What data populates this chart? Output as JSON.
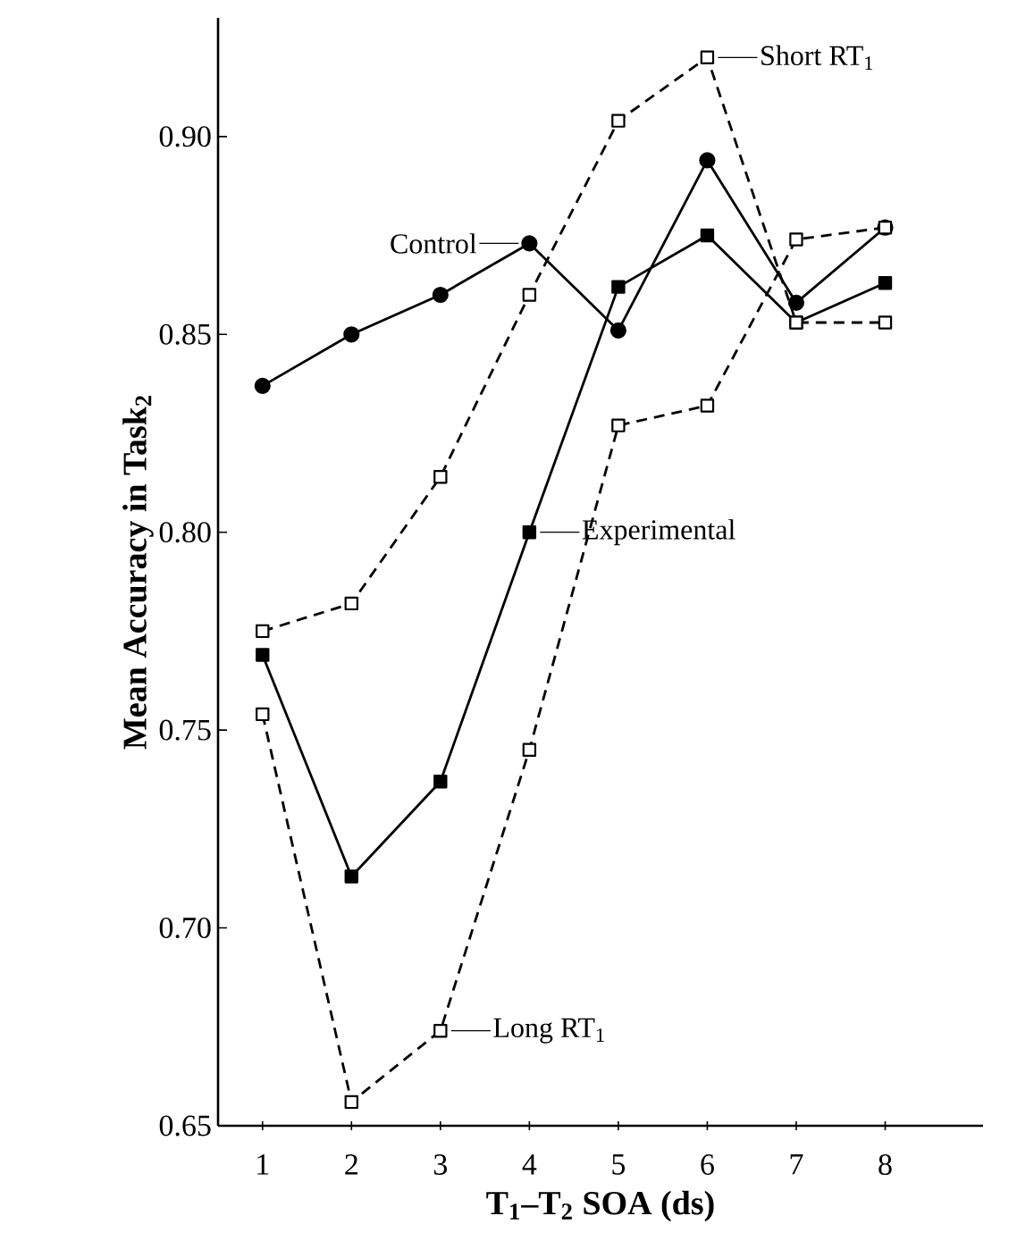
{
  "chart_data": {
    "type": "line",
    "xlabel": "T$_{1}$–T$_{2}$ SOA (ds)",
    "ylabel": "Mean Accuracy in Task$_{2}$",
    "x": [
      1,
      2,
      3,
      4,
      5,
      6,
      7,
      8
    ],
    "series": [
      {
        "color": "#000000",
        "marker": "circle",
        "line_style": "solid",
        "values": [
          0.837,
          0.85,
          0.86,
          0.873,
          0.851,
          0.894,
          0.858,
          0.877
        ]
      },
      {
        "color": "#000000",
        "marker": "square",
        "line_style": "solid",
        "values": [
          0.769,
          0.713,
          0.737,
          0.8,
          0.862,
          0.875,
          0.853,
          0.863
        ]
      },
      {
        "color": "#000000",
        "marker": "square",
        "line_style": "dashed",
        "values": [
          0.775,
          0.782,
          0.814,
          0.86,
          0.904,
          0.92,
          0.853,
          0.853
        ]
      },
      {
        "color": "#000000",
        "marker": "square",
        "line_style": "dashed",
        "values": [
          0.754,
          0.656,
          0.674,
          0.745,
          0.827,
          0.832,
          0.874,
          0.877
        ]
      }
    ],
    "annotations": [
      {
        "text": "Control",
        "x": 4,
        "y": 0.873
      },
      {
        "text": "Experimental",
        "x": 4,
        "y": 0.8
      },
      {
        "text": "Short RT$_{1}$",
        "x": 6,
        "y": 0.92
      },
      {
        "text": "Long RT$_{1}$",
        "x": 3,
        "y": 0.674
      }
    ],
    "xlim": [
      0.5,
      9.1
    ],
    "ylim": [
      0.65,
      0.93
    ],
    "xticks": [
      1,
      2,
      3,
      4,
      5,
      6,
      7,
      8
    ],
    "yticks": [
      0.65,
      {
        "value": 0.7,
        "label": "0.70"
      },
      0.75,
      {
        "value": 0.8,
        "label": "0.80"
      },
      0.85,
      {
        "value": 0.9,
        "label": "0.90"
      }
    ],
    "grid": false
  }
}
